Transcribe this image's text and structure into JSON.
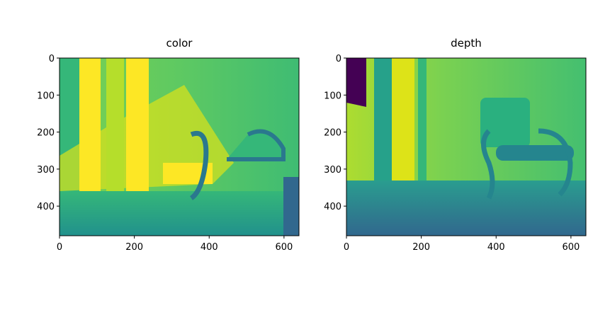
{
  "chart_data": [
    {
      "type": "image",
      "title": "color",
      "xlim": [
        0,
        640
      ],
      "ylim": [
        480,
        0
      ],
      "xticks": [
        0,
        200,
        400,
        600
      ],
      "yticks": [
        0,
        100,
        200,
        300,
        400
      ]
    },
    {
      "type": "image",
      "title": "depth",
      "xlim": [
        0,
        640
      ],
      "ylim": [
        480,
        0
      ],
      "xticks": [
        0,
        200,
        400,
        600
      ],
      "yticks": [
        0,
        100,
        200,
        300,
        400
      ]
    }
  ]
}
